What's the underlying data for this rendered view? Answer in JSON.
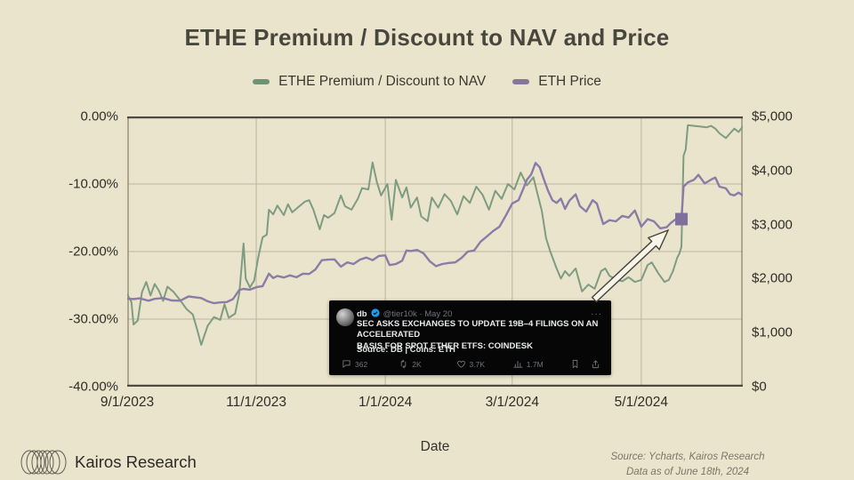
{
  "title": "ETHE Premium / Discount to NAV and Price",
  "colors": {
    "background": "#ebe4cd",
    "green_series": "#7d9c80",
    "purple_series": "#8b7ca7",
    "marker_purple": "#7e6f9d",
    "gridline": "#bcb49e",
    "axis_dark": "#4e4a41",
    "axis_side": "#99917b",
    "tweet_accent_blue": "#1d9bf0"
  },
  "legend": [
    {
      "label": "ETHE Premium / Discount to NAV",
      "color": "#6e9273"
    },
    {
      "label": "ETH Price",
      "color": "#877698"
    }
  ],
  "chart_data": {
    "type": "line",
    "title": "ETHE Premium / Discount to NAV and Price",
    "xlabel": "Date",
    "grid": true,
    "x_domain": [
      "2023-09-01",
      "2024-06-18"
    ],
    "x_ticks": [
      {
        "date": "2023-09-01",
        "label": "9/1/2023"
      },
      {
        "date": "2023-11-01",
        "label": "11/1/2023"
      },
      {
        "date": "2024-01-01",
        "label": "1/1/2024"
      },
      {
        "date": "2024-03-01",
        "label": "3/1/2024"
      },
      {
        "date": "2024-05-01",
        "label": "5/1/2024"
      }
    ],
    "left_axis": {
      "range": [
        -40,
        0
      ],
      "ticks": [
        {
          "value": 0,
          "label": "0.00%"
        },
        {
          "value": -10,
          "label": "-10.00%"
        },
        {
          "value": -20,
          "label": "-20.00%"
        },
        {
          "value": -30,
          "label": "-30.00%"
        },
        {
          "value": -40,
          "label": "-40.00%"
        }
      ]
    },
    "right_axis": {
      "range": [
        0,
        5000
      ],
      "ticks": [
        {
          "value": 5000,
          "label": "$5,000"
        },
        {
          "value": 4000,
          "label": "$4,000"
        },
        {
          "value": 3000,
          "label": "$3,000"
        },
        {
          "value": 2000,
          "label": "$2,000"
        },
        {
          "value": 1000,
          "label": "$1,000"
        },
        {
          "value": 0,
          "label": "$0"
        }
      ]
    },
    "series": [
      {
        "name": "ETHE Premium / Discount to NAV",
        "axis": "left",
        "color": "#7d9c80",
        "width": 2,
        "points": [
          [
            "2023-09-01",
            -26.3
          ],
          [
            "2023-09-03",
            -27.5
          ],
          [
            "2023-09-04",
            -30.8
          ],
          [
            "2023-09-06",
            -30.2
          ],
          [
            "2023-09-08",
            -26.0
          ],
          [
            "2023-09-10",
            -24.5
          ],
          [
            "2023-09-12",
            -26.5
          ],
          [
            "2023-09-14",
            -24.8
          ],
          [
            "2023-09-16",
            -25.8
          ],
          [
            "2023-09-18",
            -27.3
          ],
          [
            "2023-09-20",
            -25.2
          ],
          [
            "2023-09-23",
            -26.0
          ],
          [
            "2023-09-26",
            -27.2
          ],
          [
            "2023-09-29",
            -28.5
          ],
          [
            "2023-10-02",
            -29.3
          ],
          [
            "2023-10-04",
            -31.5
          ],
          [
            "2023-10-06",
            -33.8
          ],
          [
            "2023-10-09",
            -31.0
          ],
          [
            "2023-10-12",
            -29.7
          ],
          [
            "2023-10-15",
            -30.1
          ],
          [
            "2023-10-17",
            -27.8
          ],
          [
            "2023-10-19",
            -29.8
          ],
          [
            "2023-10-22",
            -29.2
          ],
          [
            "2023-10-24",
            -26.2
          ],
          [
            "2023-10-26",
            -18.8
          ],
          [
            "2023-10-27",
            -24.0
          ],
          [
            "2023-10-29",
            -25.3
          ],
          [
            "2023-10-31",
            -24.3
          ],
          [
            "2023-11-02",
            -20.8
          ],
          [
            "2023-11-04",
            -17.9
          ],
          [
            "2023-11-06",
            -17.5
          ],
          [
            "2023-11-07",
            -13.8
          ],
          [
            "2023-11-09",
            -14.5
          ],
          [
            "2023-11-11",
            -13.2
          ],
          [
            "2023-11-14",
            -14.6
          ],
          [
            "2023-11-16",
            -13.0
          ],
          [
            "2023-11-18",
            -14.2
          ],
          [
            "2023-11-21",
            -13.4
          ],
          [
            "2023-11-24",
            -12.6
          ],
          [
            "2023-11-26",
            -12.4
          ],
          [
            "2023-11-28",
            -13.8
          ],
          [
            "2023-12-01",
            -16.7
          ],
          [
            "2023-12-03",
            -14.6
          ],
          [
            "2023-12-05",
            -15.0
          ],
          [
            "2023-12-08",
            -14.3
          ],
          [
            "2023-12-11",
            -11.7
          ],
          [
            "2023-12-13",
            -13.3
          ],
          [
            "2023-12-16",
            -13.8
          ],
          [
            "2023-12-19",
            -12.2
          ],
          [
            "2023-12-21",
            -10.6
          ],
          [
            "2023-12-24",
            -10.8
          ],
          [
            "2023-12-26",
            -6.8
          ],
          [
            "2023-12-28",
            -9.7
          ],
          [
            "2023-12-30",
            -11.7
          ],
          [
            "2024-01-02",
            -10.0
          ],
          [
            "2024-01-04",
            -15.3
          ],
          [
            "2024-01-06",
            -9.4
          ],
          [
            "2024-01-09",
            -12.0
          ],
          [
            "2024-01-11",
            -10.5
          ],
          [
            "2024-01-13",
            -13.5
          ],
          [
            "2024-01-16",
            -12.0
          ],
          [
            "2024-01-18",
            -14.8
          ],
          [
            "2024-01-21",
            -15.5
          ],
          [
            "2024-01-23",
            -12.0
          ],
          [
            "2024-01-26",
            -13.5
          ],
          [
            "2024-01-29",
            -11.5
          ],
          [
            "2024-02-01",
            -12.5
          ],
          [
            "2024-02-04",
            -14.5
          ],
          [
            "2024-02-07",
            -11.8
          ],
          [
            "2024-02-10",
            -12.8
          ],
          [
            "2024-02-13",
            -10.4
          ],
          [
            "2024-02-16",
            -11.6
          ],
          [
            "2024-02-19",
            -13.8
          ],
          [
            "2024-02-22",
            -11.0
          ],
          [
            "2024-02-25",
            -12.2
          ],
          [
            "2024-02-28",
            -10.0
          ],
          [
            "2024-03-02",
            -10.8
          ],
          [
            "2024-03-05",
            -8.3
          ],
          [
            "2024-03-08",
            -10.2
          ],
          [
            "2024-03-11",
            -9.0
          ],
          [
            "2024-03-13",
            -11.5
          ],
          [
            "2024-03-15",
            -14.0
          ],
          [
            "2024-03-17",
            -18.0
          ],
          [
            "2024-03-19",
            -20.0
          ],
          [
            "2024-03-22",
            -22.5
          ],
          [
            "2024-03-24",
            -24.0
          ],
          [
            "2024-03-26",
            -22.9
          ],
          [
            "2024-03-28",
            -23.6
          ],
          [
            "2024-03-31",
            -22.5
          ],
          [
            "2024-04-03",
            -25.9
          ],
          [
            "2024-04-06",
            -24.9
          ],
          [
            "2024-04-09",
            -25.5
          ],
          [
            "2024-04-12",
            -22.9
          ],
          [
            "2024-04-14",
            -22.5
          ],
          [
            "2024-04-16",
            -23.6
          ],
          [
            "2024-04-19",
            -24.1
          ],
          [
            "2024-04-22",
            -24.4
          ],
          [
            "2024-04-25",
            -23.8
          ],
          [
            "2024-04-28",
            -24.5
          ],
          [
            "2024-05-01",
            -24.2
          ],
          [
            "2024-05-04",
            -22.0
          ],
          [
            "2024-05-06",
            -21.6
          ],
          [
            "2024-05-09",
            -23.2
          ],
          [
            "2024-05-12",
            -24.5
          ],
          [
            "2024-05-14",
            -24.2
          ],
          [
            "2024-05-16",
            -22.9
          ],
          [
            "2024-05-18",
            -20.9
          ],
          [
            "2024-05-19",
            -20.3
          ],
          [
            "2024-05-20",
            -19.3
          ],
          [
            "2024-05-21",
            -5.8
          ],
          [
            "2024-05-22",
            -4.9
          ],
          [
            "2024-05-23",
            -1.3
          ],
          [
            "2024-05-26",
            -1.4
          ],
          [
            "2024-05-29",
            -1.5
          ],
          [
            "2024-06-01",
            -1.6
          ],
          [
            "2024-06-03",
            -1.4
          ],
          [
            "2024-06-05",
            -1.8
          ],
          [
            "2024-06-07",
            -2.5
          ],
          [
            "2024-06-10",
            -3.2
          ],
          [
            "2024-06-12",
            -2.5
          ],
          [
            "2024-06-14",
            -1.8
          ],
          [
            "2024-06-16",
            -2.3
          ],
          [
            "2024-06-18",
            -1.5
          ]
        ]
      },
      {
        "name": "ETH Price",
        "axis": "right",
        "color": "#8b7ca7",
        "width": 2.4,
        "points": [
          [
            "2023-09-01",
            1630
          ],
          [
            "2023-09-04",
            1620
          ],
          [
            "2023-09-07",
            1635
          ],
          [
            "2023-09-11",
            1590
          ],
          [
            "2023-09-14",
            1625
          ],
          [
            "2023-09-18",
            1640
          ],
          [
            "2023-09-22",
            1595
          ],
          [
            "2023-09-26",
            1590
          ],
          [
            "2023-09-30",
            1670
          ],
          [
            "2023-10-03",
            1655
          ],
          [
            "2023-10-06",
            1640
          ],
          [
            "2023-10-09",
            1580
          ],
          [
            "2023-10-12",
            1545
          ],
          [
            "2023-10-15",
            1560
          ],
          [
            "2023-10-18",
            1565
          ],
          [
            "2023-10-21",
            1620
          ],
          [
            "2023-10-24",
            1790
          ],
          [
            "2023-10-26",
            1810
          ],
          [
            "2023-10-29",
            1795
          ],
          [
            "2023-11-01",
            1840
          ],
          [
            "2023-11-04",
            1860
          ],
          [
            "2023-11-07",
            2090
          ],
          [
            "2023-11-09",
            2010
          ],
          [
            "2023-11-11",
            2050
          ],
          [
            "2023-11-14",
            2020
          ],
          [
            "2023-11-17",
            2060
          ],
          [
            "2023-11-20",
            2025
          ],
          [
            "2023-11-23",
            2090
          ],
          [
            "2023-11-26",
            2085
          ],
          [
            "2023-11-29",
            2170
          ],
          [
            "2023-12-02",
            2340
          ],
          [
            "2023-12-05",
            2350
          ],
          [
            "2023-12-08",
            2355
          ],
          [
            "2023-12-11",
            2220
          ],
          [
            "2023-12-14",
            2300
          ],
          [
            "2023-12-17",
            2270
          ],
          [
            "2023-12-20",
            2350
          ],
          [
            "2023-12-23",
            2390
          ],
          [
            "2023-12-26",
            2340
          ],
          [
            "2023-12-29",
            2420
          ],
          [
            "2024-01-01",
            2430
          ],
          [
            "2024-01-03",
            2250
          ],
          [
            "2024-01-06",
            2270
          ],
          [
            "2024-01-09",
            2330
          ],
          [
            "2024-01-11",
            2520
          ],
          [
            "2024-01-13",
            2510
          ],
          [
            "2024-01-16",
            2530
          ],
          [
            "2024-01-19",
            2470
          ],
          [
            "2024-01-22",
            2320
          ],
          [
            "2024-01-25",
            2230
          ],
          [
            "2024-01-28",
            2270
          ],
          [
            "2024-01-31",
            2290
          ],
          [
            "2024-02-03",
            2300
          ],
          [
            "2024-02-06",
            2380
          ],
          [
            "2024-02-09",
            2500
          ],
          [
            "2024-02-12",
            2520
          ],
          [
            "2024-02-15",
            2680
          ],
          [
            "2024-02-18",
            2780
          ],
          [
            "2024-02-21",
            2880
          ],
          [
            "2024-02-24",
            2960
          ],
          [
            "2024-02-27",
            3170
          ],
          [
            "2024-03-01",
            3390
          ],
          [
            "2024-03-04",
            3450
          ],
          [
            "2024-03-06",
            3640
          ],
          [
            "2024-03-08",
            3830
          ],
          [
            "2024-03-10",
            3930
          ],
          [
            "2024-03-12",
            4140
          ],
          [
            "2024-03-14",
            4060
          ],
          [
            "2024-03-16",
            3830
          ],
          [
            "2024-03-18",
            3620
          ],
          [
            "2024-03-20",
            3450
          ],
          [
            "2024-03-22",
            3400
          ],
          [
            "2024-03-24",
            3480
          ],
          [
            "2024-03-26",
            3290
          ],
          [
            "2024-03-28",
            3440
          ],
          [
            "2024-03-31",
            3560
          ],
          [
            "2024-04-02",
            3340
          ],
          [
            "2024-04-05",
            3240
          ],
          [
            "2024-04-08",
            3450
          ],
          [
            "2024-04-10",
            3390
          ],
          [
            "2024-04-13",
            3010
          ],
          [
            "2024-04-16",
            3080
          ],
          [
            "2024-04-19",
            3060
          ],
          [
            "2024-04-22",
            3160
          ],
          [
            "2024-04-25",
            3130
          ],
          [
            "2024-04-28",
            3260
          ],
          [
            "2024-05-01",
            2960
          ],
          [
            "2024-05-04",
            3100
          ],
          [
            "2024-05-07",
            3060
          ],
          [
            "2024-05-10",
            2930
          ],
          [
            "2024-05-13",
            2950
          ],
          [
            "2024-05-15",
            3030
          ],
          [
            "2024-05-17",
            3090
          ],
          [
            "2024-05-20",
            3100
          ],
          [
            "2024-05-21",
            3700
          ],
          [
            "2024-05-23",
            3780
          ],
          [
            "2024-05-26",
            3830
          ],
          [
            "2024-05-28",
            3920
          ],
          [
            "2024-05-31",
            3760
          ],
          [
            "2024-06-03",
            3830
          ],
          [
            "2024-06-05",
            3870
          ],
          [
            "2024-06-07",
            3700
          ],
          [
            "2024-06-10",
            3670
          ],
          [
            "2024-06-12",
            3560
          ],
          [
            "2024-06-14",
            3540
          ],
          [
            "2024-06-16",
            3590
          ],
          [
            "2024-06-18",
            3540
          ]
        ]
      }
    ],
    "marker": {
      "series": "ETH Price",
      "date": "2024-05-20",
      "value": 3100,
      "shape": "square",
      "size": 14,
      "color": "#7e6f9d"
    }
  },
  "annotation_arrow": {
    "from": [
      668,
      337
    ],
    "to": [
      751,
      259
    ],
    "fill": "#f7f4ea",
    "stroke": "#45423a"
  },
  "tweet": {
    "author": "db",
    "handle_date": "@tier10k · May 20",
    "more": "···",
    "line1": "SEC ASKS EXCHANGES TO UPDATE 19B–4 FILINGS ON AN ACCELERATED",
    "line2": "BASIS FOR SPOT ETHER ETFS: COINDESK",
    "source_line": "Source: DB | Coins: ETH",
    "engagement": [
      {
        "icon": "reply-icon",
        "count": "362"
      },
      {
        "icon": "retweet-icon",
        "count": "2K"
      },
      {
        "icon": "like-icon",
        "count": "3.7K"
      },
      {
        "icon": "views-icon",
        "count": "1.7M"
      }
    ],
    "actions": [
      "bookmark-icon",
      "share-icon"
    ]
  },
  "footer": {
    "brand": "Kairos Research",
    "source_line1": "Source: Ycharts, Kairos Research",
    "source_line2": "Data as of June 18th, 2024"
  }
}
